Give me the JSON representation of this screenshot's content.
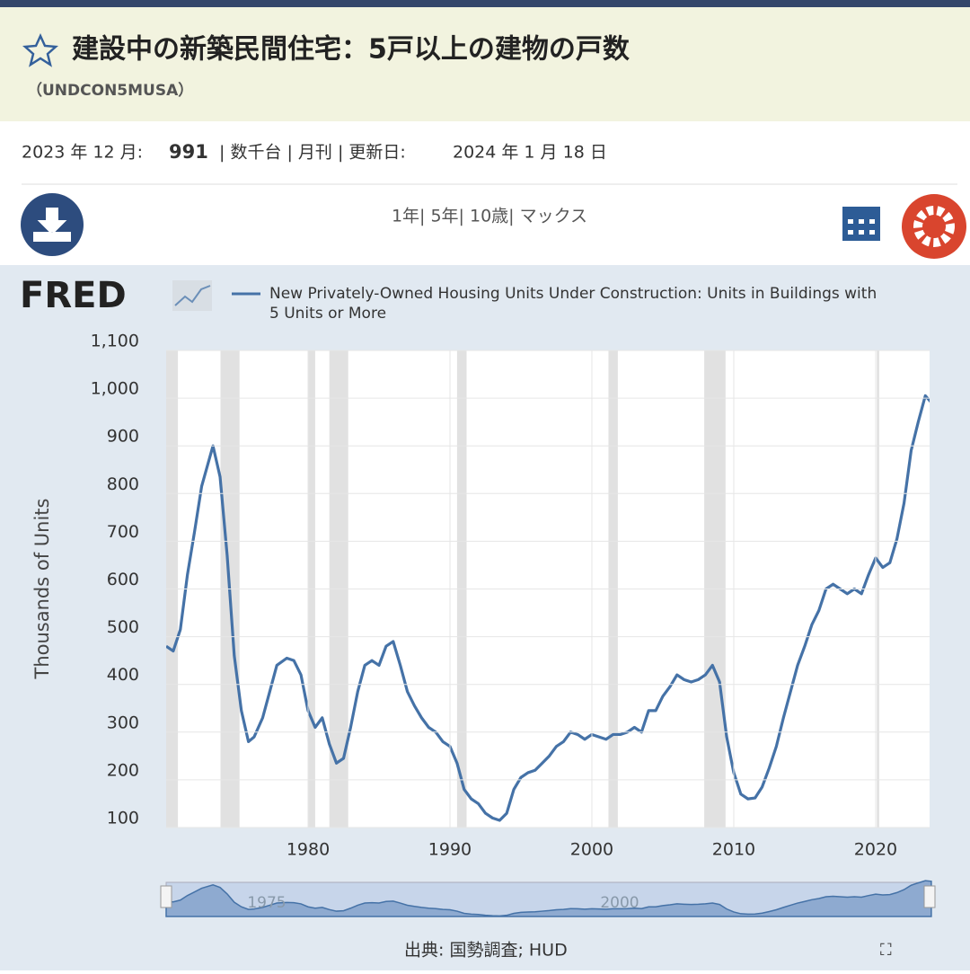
{
  "header": {
    "title": "建設中の新築民間住宅：5戸以上の建物の戸数",
    "series_id": "（UNDCON5MUSA）"
  },
  "info": {
    "date": "2023 年 12 月:",
    "value": "991",
    "meta": "| 数千台 | 月刊 | 更新日:",
    "updated": "2024 年 1 月 18 日"
  },
  "controls": {
    "ranges": "1年| 5年| 10歳| マックス"
  },
  "logo": "FRED",
  "source": "出典: 国勢調査; HUD",
  "navigator": {
    "labels": [
      "1975",
      "2000"
    ]
  },
  "chart_data": {
    "type": "line",
    "y_label": "Thousands of Units",
    "series": [
      {
        "name": "New Privately-Owned Housing Units Under Construction: Units in Buildings with 5 Units or More",
        "color": "#4572a7",
        "x": [
          1970,
          1970.5,
          1971,
          1971.5,
          1972,
          1972.5,
          1973.3,
          1973.8,
          1974.3,
          1974.8,
          1975.3,
          1975.8,
          1976.2,
          1976.8,
          1977.3,
          1977.8,
          1978.5,
          1979,
          1979.5,
          1980,
          1980.5,
          1981,
          1981.5,
          1982,
          1982.5,
          1983,
          1983.5,
          1984,
          1984.5,
          1985,
          1985.5,
          1986,
          1986.5,
          1987,
          1987.5,
          1988,
          1988.5,
          1989,
          1989.5,
          1990,
          1990.5,
          1991,
          1991.5,
          1992,
          1992.5,
          1993,
          1993.5,
          1994,
          1994.5,
          1995,
          1995.5,
          1996,
          1996.5,
          1997,
          1997.5,
          1998,
          1998.5,
          1999,
          1999.5,
          2000,
          2000.5,
          2001,
          2001.5,
          2002,
          2002.5,
          2003,
          2003.5,
          2004,
          2004.5,
          2005,
          2005.5,
          2006,
          2006.5,
          2007,
          2007.5,
          2008,
          2008.5,
          2009,
          2009.5,
          2010,
          2010.5,
          2011,
          2011.5,
          2012,
          2012.5,
          2013,
          2013.5,
          2014,
          2014.5,
          2015,
          2015.5,
          2016,
          2016.5,
          2017,
          2017.5,
          2018,
          2018.5,
          2019,
          2019.5,
          2020,
          2020.5,
          2021,
          2021.5,
          2022,
          2022.5,
          2023,
          2023.5,
          2023.92
        ],
        "values": [
          480,
          470,
          515,
          630,
          720,
          815,
          900,
          835,
          670,
          460,
          345,
          280,
          290,
          330,
          385,
          440,
          455,
          450,
          420,
          345,
          310,
          330,
          275,
          235,
          245,
          310,
          385,
          440,
          450,
          440,
          480,
          490,
          440,
          385,
          355,
          330,
          310,
          300,
          280,
          270,
          235,
          180,
          160,
          150,
          130,
          120,
          115,
          130,
          180,
          205,
          215,
          220,
          235,
          250,
          270,
          280,
          300,
          295,
          285,
          295,
          290,
          285,
          295,
          295,
          300,
          310,
          300,
          345,
          345,
          375,
          395,
          420,
          410,
          405,
          410,
          420,
          440,
          405,
          290,
          215,
          170,
          160,
          162,
          185,
          225,
          270,
          330,
          385,
          440,
          480,
          525,
          555,
          600,
          610,
          600,
          590,
          600,
          590,
          630,
          665,
          645,
          655,
          705,
          780,
          890,
          950,
          1005,
          991
        ]
      }
    ],
    "recessions": [
      [
        1969.92,
        1970.83
      ],
      [
        1973.83,
        1975.17
      ],
      [
        1980.0,
        1980.5
      ],
      [
        1981.5,
        1982.83
      ],
      [
        1990.5,
        1991.17
      ],
      [
        2001.17,
        2001.83
      ],
      [
        2007.92,
        2009.42
      ],
      [
        2020.08,
        2020.25
      ]
    ],
    "xlim": [
      1970,
      2023.8
    ],
    "xticks": [
      1980,
      1990,
      2000,
      2010,
      2020
    ],
    "ylim": [
      100,
      1100
    ],
    "yticks": [
      100,
      200,
      300,
      400,
      500,
      600,
      700,
      800,
      900,
      {
        "value": 1000,
        "label": "1,000"
      },
      {
        "value": 1100,
        "label": "1,100"
      }
    ],
    "grid": true
  }
}
